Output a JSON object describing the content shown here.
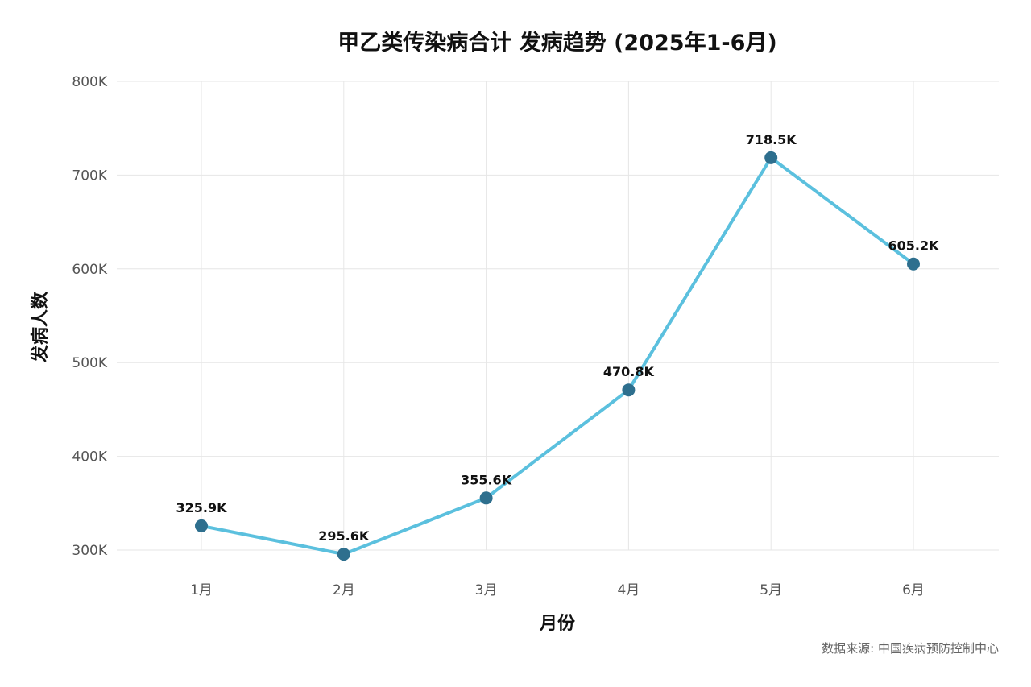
{
  "chart_data": {
    "type": "line",
    "title": "甲乙类传染病合计 发病趋势 (2025年1-6月)",
    "xlabel": "月份",
    "ylabel": "发病人数",
    "categories": [
      "1月",
      "2月",
      "3月",
      "4月",
      "5月",
      "6月"
    ],
    "series": [
      {
        "values": [
          325900,
          295600,
          355600,
          470800,
          718500,
          605200
        ],
        "data_labels": [
          "325.9K",
          "295.6K",
          "355.6K",
          "470.8K",
          "718.5K",
          "605.2K"
        ]
      }
    ],
    "ylim": [
      300000,
      800000
    ],
    "yticks": [
      300000,
      400000,
      500000,
      600000,
      700000,
      800000
    ],
    "ytick_labels": [
      "300K",
      "400K",
      "500K",
      "600K",
      "700K",
      "800K"
    ],
    "grid": true,
    "colors": {
      "line": "#5bc0de",
      "marker": "#2e6f8e"
    },
    "caption": "数据来源: 中国疾病预防控制中心"
  }
}
